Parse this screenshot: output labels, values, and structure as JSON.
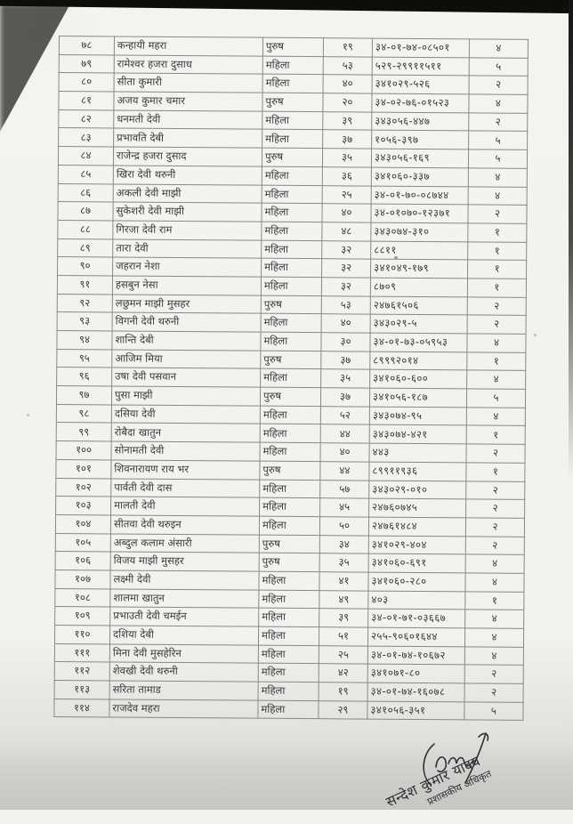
{
  "colors": {
    "ink": "#393a40",
    "paper": "#f3f2ee",
    "table_line": "#8a8882"
  },
  "table": {
    "column_keys": [
      "sn",
      "name",
      "gender",
      "age",
      "id_number",
      "ward"
    ],
    "rows": [
      {
        "sn": "७८",
        "name": "कन्हायी महरा",
        "gender": "पुरुष",
        "age": "१९",
        "id_number": "३४-०१-७४-०८५०१",
        "ward": "४"
      },
      {
        "sn": "७९",
        "name": "रामेश्वर हजरा दुसाध",
        "gender": "महिला",
        "age": "५३",
        "id_number": "५२९-२९९११५११",
        "ward": "५"
      },
      {
        "sn": "८०",
        "name": "सीता कुमारी",
        "gender": "महिला",
        "age": "४०",
        "id_number": "३४१०२९-५२६",
        "ward": "२"
      },
      {
        "sn": "८१",
        "name": "अजय कुमार चमार",
        "gender": "पुरुष",
        "age": "२०",
        "id_number": "३४-०२-७६-०१५२३",
        "ward": "४"
      },
      {
        "sn": "८२",
        "name": "धनमती देवी",
        "gender": "महिला",
        "age": "३९",
        "id_number": "३४३०५६-४४७",
        "ward": "२"
      },
      {
        "sn": "८३",
        "name": "प्रभावति देबी",
        "gender": "महिला",
        "age": "३७",
        "id_number": "१०५६-३९७",
        "ward": "५"
      },
      {
        "sn": "८४",
        "name": "राजेन्द्र हजरा दुसाद",
        "gender": "पुरुष",
        "age": "३५",
        "id_number": "३४३०५६-१६९",
        "ward": "५"
      },
      {
        "sn": "८५",
        "name": "खिरा देवी थरुनी",
        "gender": "महिला",
        "age": "३६",
        "id_number": "३४१०६०-३३७",
        "ward": "४"
      },
      {
        "sn": "८६",
        "name": "अकली देवी माझी",
        "gender": "महिला",
        "age": "२५",
        "id_number": "३४-०१-७०-०८७४४",
        "ward": "४"
      },
      {
        "sn": "८७",
        "name": "सुकेशरी देवी माझी",
        "gender": "महिला",
        "age": "४०",
        "id_number": "३४-०१०७०-१२३७१",
        "ward": "२"
      },
      {
        "sn": "८८",
        "name": "गिरजा देवी राम",
        "gender": "महिला",
        "age": "४८",
        "id_number": "३४३०७४-३१०",
        "ward": "१"
      },
      {
        "sn": "८९",
        "name": "तारा देवी",
        "gender": "महिला",
        "age": "३२",
        "id_number": "८८११",
        "ward": "१"
      },
      {
        "sn": "९०",
        "name": "जहरान नेशा",
        "gender": "महिला",
        "age": "३२",
        "id_number": "३४१०४९-१७९",
        "ward": "१"
      },
      {
        "sn": "९१",
        "name": "हसबुन नेसा",
        "gender": "महिला",
        "age": "३२",
        "id_number": "८७०९",
        "ward": "१"
      },
      {
        "sn": "९२",
        "name": "लछुमन माझी मुसहर",
        "gender": "पुरुष",
        "age": "५३",
        "id_number": "२४७६१५०६",
        "ward": "२"
      },
      {
        "sn": "९३",
        "name": "विगनी देवी थरुनी",
        "gender": "महिला",
        "age": "४०",
        "id_number": "३४३०२९-५",
        "ward": "२"
      },
      {
        "sn": "९४",
        "name": "शान्ति देबी",
        "gender": "महिला",
        "age": "३०",
        "id_number": "३४-०१-७३-०५९५३",
        "ward": "४"
      },
      {
        "sn": "९५",
        "name": "आजिम मिया",
        "gender": "पुरुष",
        "age": "३७",
        "id_number": "८९९९२०१४",
        "ward": "१"
      },
      {
        "sn": "९६",
        "name": "उषा देवी पसवान",
        "gender": "महिला",
        "age": "३५",
        "id_number": "३४१०६०-६००",
        "ward": "४"
      },
      {
        "sn": "९७",
        "name": "पुसा माझी",
        "gender": "पुरुष",
        "age": "३७",
        "id_number": "३४१०५६-१८७",
        "ward": "५"
      },
      {
        "sn": "९८",
        "name": "दसिया देवी",
        "gender": "महिला",
        "age": "५२",
        "id_number": "३४३०७४-९५",
        "ward": "४"
      },
      {
        "sn": "९९",
        "name": "रोबैदा खातुन",
        "gender": "महिला",
        "age": "४४",
        "id_number": "३४३०७४-४२१",
        "ward": "१"
      },
      {
        "sn": "१००",
        "name": "सोनामती देवी",
        "gender": "महिला",
        "age": "४०",
        "id_number": "४४३",
        "ward": "२"
      },
      {
        "sn": "१०१",
        "name": "शिवनारायण राय भर",
        "gender": "पुरुष",
        "age": "४४",
        "id_number": "८९९११९३६",
        "ward": "१"
      },
      {
        "sn": "१०२",
        "name": "पार्वती देवी दास",
        "gender": "महिला",
        "age": "५७",
        "id_number": "३४३०२९-०१०",
        "ward": "२"
      },
      {
        "sn": "१०३",
        "name": "मालती देवी",
        "gender": "महिला",
        "age": "४५",
        "id_number": "२४७६०७४५",
        "ward": "२"
      },
      {
        "sn": "१०४",
        "name": "सीतवा देवी थरुइन",
        "gender": "महिला",
        "age": "५०",
        "id_number": "२४७६१४८४",
        "ward": "२"
      },
      {
        "sn": "१०५",
        "name": "अब्दुल कलाम अंसारी",
        "gender": "पुरुष",
        "age": "३४",
        "id_number": "३४१०२९-४०४",
        "ward": "२"
      },
      {
        "sn": "१०६",
        "name": "विजय माझी मुसहर",
        "gender": "पुरुष",
        "age": "३५",
        "id_number": "३४१०६०-६९१",
        "ward": "४"
      },
      {
        "sn": "१०७",
        "name": "लक्ष्मी देवी",
        "gender": "महिला",
        "age": "४१",
        "id_number": "३४१०६०-२८०",
        "ward": "४"
      },
      {
        "sn": "१०८",
        "name": "शालमा खातुन",
        "gender": "महिला",
        "age": "४९",
        "id_number": "४०३",
        "ward": "१"
      },
      {
        "sn": "१०९",
        "name": "प्रभाउती देवी चमईन",
        "gender": "महिला",
        "age": "३९",
        "id_number": "३४-०१-७१-०३६६७",
        "ward": "४"
      },
      {
        "sn": "११०",
        "name": "दशिया देबी",
        "gender": "महिला",
        "age": "५१",
        "id_number": "२५५-९०६०१६४४",
        "ward": "४"
      },
      {
        "sn": "१११",
        "name": "मिना देवी मुसहेरिन",
        "gender": "महिला",
        "age": "२५",
        "id_number": "३४-०१-७४-१०६७२",
        "ward": "४"
      },
      {
        "sn": "११२",
        "name": "शेवखी देवी थरुनी",
        "gender": "महिला",
        "age": "४२",
        "id_number": "३४१०७१-८०",
        "ward": "२"
      },
      {
        "sn": "११३",
        "name": "सरिता तामाड",
        "gender": "महिला",
        "age": "१९",
        "id_number": "३४-०१-७४-१६०७८",
        "ward": "२"
      },
      {
        "sn": "११४",
        "name": "राजदेव महरा",
        "gender": "महिला",
        "age": "२९",
        "id_number": "३४१०५६-३५१",
        "ward": "५"
      }
    ]
  },
  "signature": {
    "name": "सन्देश कुमार यादव",
    "title": "प्रशासकीय अधिकृत"
  }
}
